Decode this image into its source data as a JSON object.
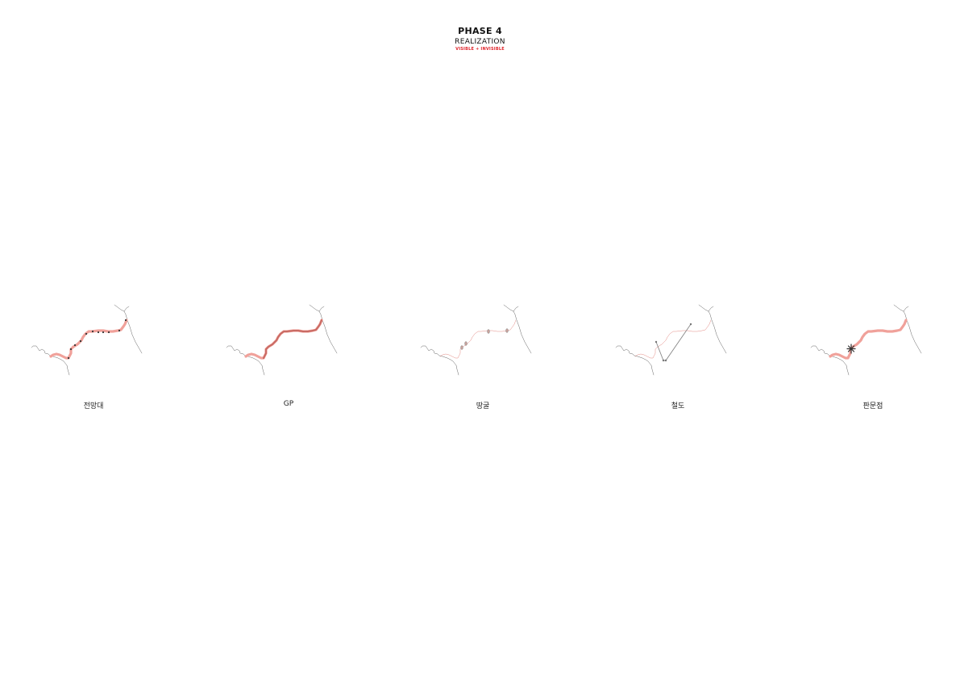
{
  "header": {
    "title": "PHASE 4",
    "subtitle": "REALIZATION",
    "tagline": "VISIBLE + INVISIBLE"
  },
  "panels": [
    {
      "label": "전망대"
    },
    {
      "label": "GP"
    },
    {
      "label": "땅굴"
    },
    {
      "label": "철도"
    },
    {
      "label": "판문점"
    }
  ],
  "colors": {
    "accent_red": "#e0242b",
    "dmz_highlight": "#f0a19a",
    "linework": "#555555"
  }
}
